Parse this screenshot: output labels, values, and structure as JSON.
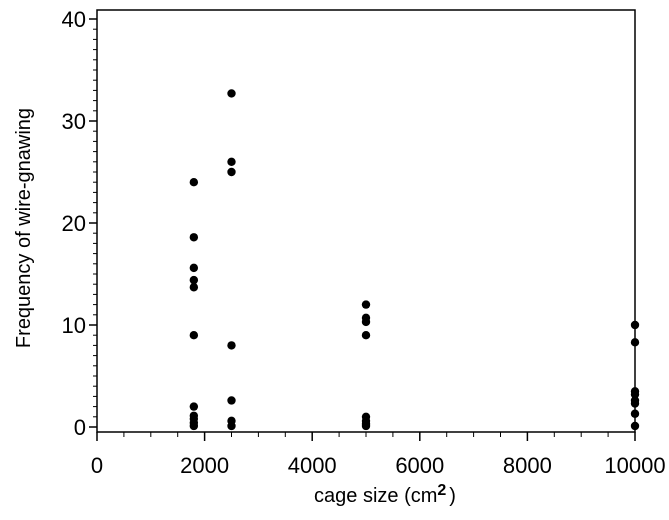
{
  "chart_data": {
    "type": "scatter",
    "title": "",
    "xlabel": "cage size (cm",
    "xlabel_superscript": "2",
    "xlabel_suffix": ")",
    "ylabel": "Frequency of wire-gnawing",
    "xlim": [
      0,
      10000
    ],
    "ylim": [
      0,
      40
    ],
    "x_ticks": [
      0,
      2000,
      4000,
      6000,
      8000,
      10000
    ],
    "x_tick_labels": [
      "0",
      "2000",
      "4000",
      "6000",
      "8000",
      "10000"
    ],
    "y_ticks": [
      0,
      10,
      20,
      30,
      40
    ],
    "y_tick_labels": [
      "0",
      "10",
      "20",
      "30",
      "40"
    ],
    "grid": false,
    "legend": "none",
    "marker_color": "#000000",
    "series": [
      {
        "points": [
          {
            "x": 1800,
            "y": 24.0
          },
          {
            "x": 1800,
            "y": 18.6
          },
          {
            "x": 1800,
            "y": 15.6
          },
          {
            "x": 1800,
            "y": 14.4
          },
          {
            "x": 1800,
            "y": 13.7
          },
          {
            "x": 1800,
            "y": 9.0
          },
          {
            "x": 1800,
            "y": 2.0
          },
          {
            "x": 1800,
            "y": 1.1
          },
          {
            "x": 1800,
            "y": 0.8
          },
          {
            "x": 1800,
            "y": 0.4
          },
          {
            "x": 1800,
            "y": 0.1
          },
          {
            "x": 2500,
            "y": 32.7
          },
          {
            "x": 2500,
            "y": 26.0
          },
          {
            "x": 2500,
            "y": 25.0
          },
          {
            "x": 2500,
            "y": 8.0
          },
          {
            "x": 2500,
            "y": 2.6
          },
          {
            "x": 2500,
            "y": 0.6
          },
          {
            "x": 2500,
            "y": 0.1
          },
          {
            "x": 5000,
            "y": 12.0
          },
          {
            "x": 5000,
            "y": 10.7
          },
          {
            "x": 5000,
            "y": 10.3
          },
          {
            "x": 5000,
            "y": 9.0
          },
          {
            "x": 5000,
            "y": 1.0
          },
          {
            "x": 5000,
            "y": 0.6
          },
          {
            "x": 5000,
            "y": 0.3
          },
          {
            "x": 5000,
            "y": 0.1
          },
          {
            "x": 10000,
            "y": 10.0
          },
          {
            "x": 10000,
            "y": 8.3
          },
          {
            "x": 10000,
            "y": 3.5
          },
          {
            "x": 10000,
            "y": 3.2
          },
          {
            "x": 10000,
            "y": 2.6
          },
          {
            "x": 10000,
            "y": 2.3
          },
          {
            "x": 10000,
            "y": 1.3
          },
          {
            "x": 10000,
            "y": 0.1
          }
        ]
      }
    ]
  }
}
